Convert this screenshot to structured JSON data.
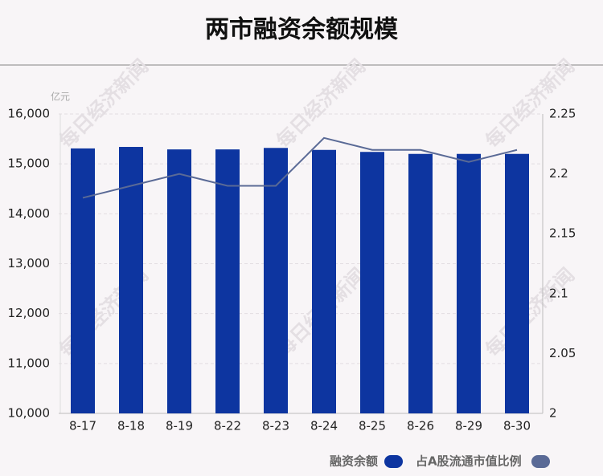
{
  "chart_data": {
    "type": "combo",
    "title": "两市融资余额规模",
    "y_unit": "亿元",
    "watermark": "每日经济新闻",
    "categories": [
      "8-17",
      "8-18",
      "8-19",
      "8-22",
      "8-23",
      "8-24",
      "8-25",
      "8-26",
      "8-29",
      "8-30"
    ],
    "series": [
      {
        "name": "融资余额",
        "type": "bar",
        "color": "#0d35a0",
        "values": [
          15310,
          15340,
          15290,
          15290,
          15320,
          15280,
          15240,
          15200,
          15200,
          15200
        ]
      },
      {
        "name": "占A股流通市值比例",
        "type": "line",
        "axis": "y2",
        "color": "#5a6a96",
        "values": [
          2.18,
          2.19,
          2.2,
          2.19,
          2.19,
          2.23,
          2.22,
          2.22,
          2.21,
          2.22
        ]
      }
    ],
    "ylim": [
      10000,
      16000
    ],
    "yticks": [
      {
        "value": 10000,
        "label": "10,000"
      },
      {
        "value": 11000,
        "label": "11,000"
      },
      {
        "value": 12000,
        "label": "12,000"
      },
      {
        "value": 13000,
        "label": "13,000"
      },
      {
        "value": 14000,
        "label": "14,000"
      },
      {
        "value": 15000,
        "label": "15,000"
      },
      {
        "value": 16000,
        "label": "16,000"
      }
    ],
    "y2lim": [
      2,
      2.25
    ],
    "y2ticks": [
      2,
      2.05,
      2.1,
      2.15,
      2.2,
      2.25
    ],
    "grid": true
  }
}
